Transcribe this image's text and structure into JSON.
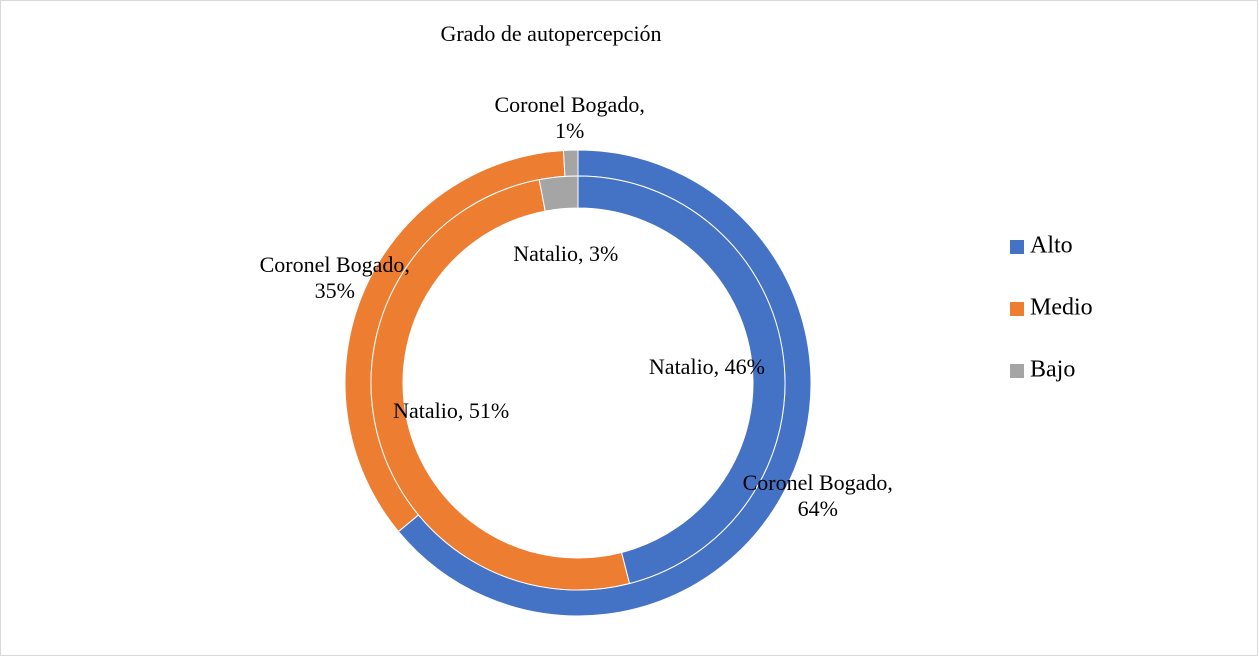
{
  "chart_data": {
    "type": "doughnut",
    "title": "Grado de autopercepción",
    "categories": [
      "Alto",
      "Medio",
      "Bajo"
    ],
    "colors": [
      "#4472c4",
      "#ed7d31",
      "#a5a5a5"
    ],
    "series": [
      {
        "name": "Coronel Bogado",
        "values": [
          64,
          35,
          1
        ],
        "value_labels": [
          "Coronel Bogado, 64%",
          "Coronel Bogado, 35%",
          "Coronel Bogado, 1%"
        ]
      },
      {
        "name": "Natalio",
        "values": [
          46,
          51,
          3
        ],
        "value_labels": [
          "Natalio, 46%",
          "Natalio, 51%",
          "Natalio, 3%"
        ]
      }
    ],
    "legend": "right"
  }
}
